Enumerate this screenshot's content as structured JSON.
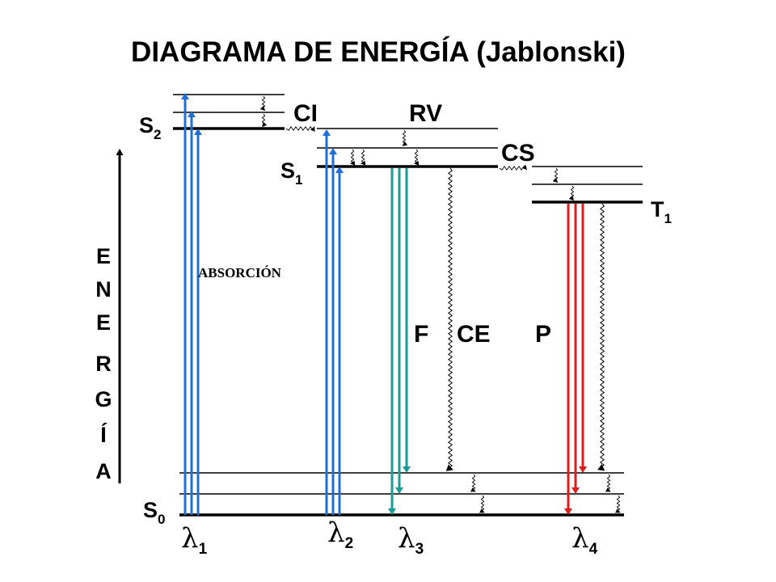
{
  "title": "DIAGRAMA DE ENERGÍA (Jablonski)",
  "axis_label": [
    "E",
    "N",
    "E",
    "R",
    "G",
    "Í",
    "A"
  ],
  "states": {
    "s2": {
      "main": "S",
      "sub": "2"
    },
    "s1": {
      "main": "S",
      "sub": "1"
    },
    "s0": {
      "main": "S",
      "sub": "0"
    },
    "t1": {
      "main": "T",
      "sub": "1"
    }
  },
  "processes": {
    "ci": "CI",
    "rv": "RV",
    "cs": "CS",
    "absorcion": "ABSORCIÓN",
    "f": "F",
    "ce": "CE",
    "p": "P"
  },
  "wavelengths": [
    {
      "symbol": "λ",
      "sub": "1"
    },
    {
      "symbol": "λ",
      "sub": "2"
    },
    {
      "symbol": "λ",
      "sub": "3"
    },
    {
      "symbol": "λ",
      "sub": "4"
    }
  ],
  "colors": {
    "absorption": "#1f6fd6",
    "fluorescence": "#1a9b96",
    "phosphorescence": "#e01b1b",
    "level": "#000000"
  }
}
